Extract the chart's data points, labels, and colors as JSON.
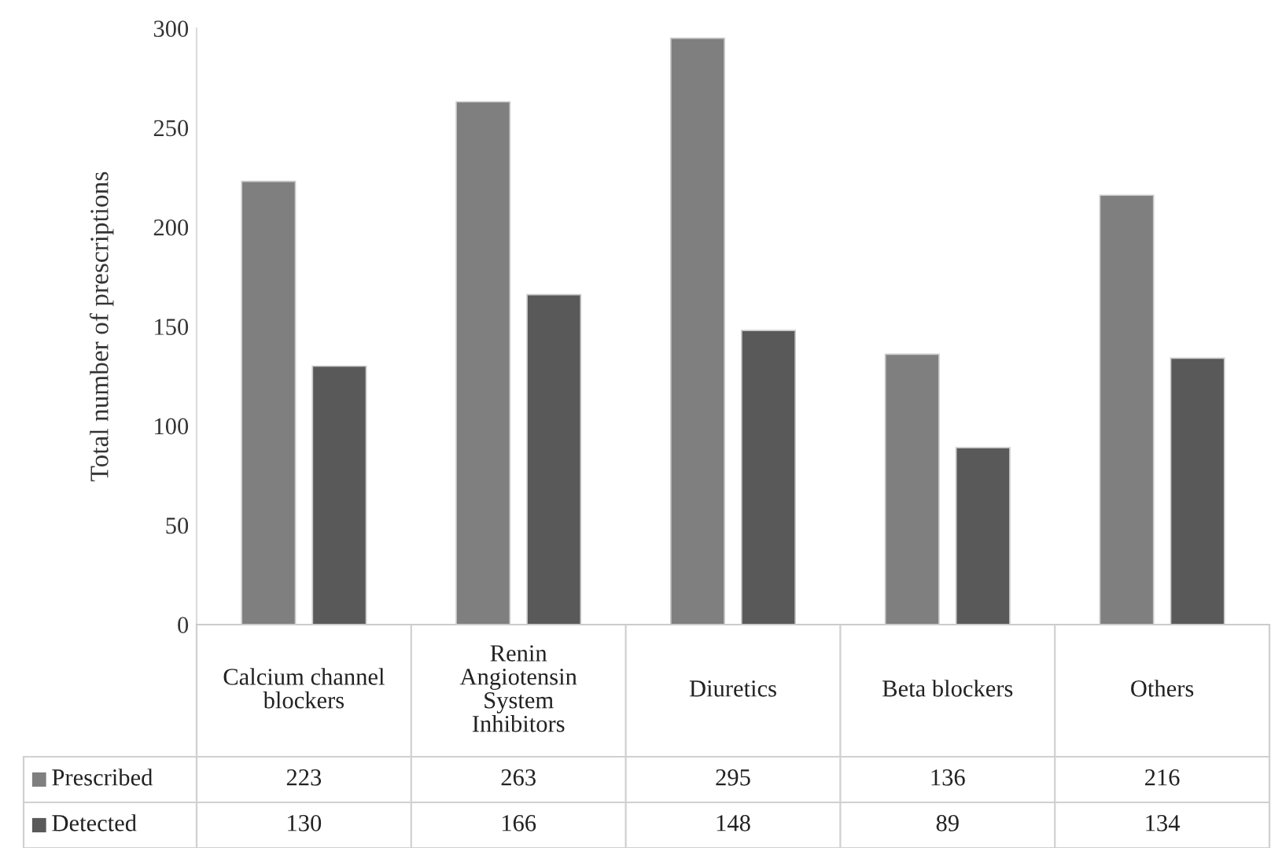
{
  "chart_data": {
    "type": "bar",
    "ylabel": "Total number of prescriptions",
    "categories": [
      "Calcium channel\nblockers",
      "Renin\nAngiotensin\nSystem\nInhibitors",
      "Diuretics",
      "Beta blockers",
      "Others"
    ],
    "series": [
      {
        "name": "Prescribed",
        "color": "#7f7f7f",
        "values": [
          223,
          263,
          295,
          136,
          216
        ]
      },
      {
        "name": "Detected",
        "color": "#595959",
        "values": [
          130,
          166,
          148,
          89,
          134
        ]
      }
    ],
    "ylim": [
      0,
      300
    ],
    "yticks": [
      0,
      50,
      100,
      150,
      200,
      250,
      300
    ],
    "grid": false,
    "data_labels": true,
    "legend": "bottom left"
  }
}
